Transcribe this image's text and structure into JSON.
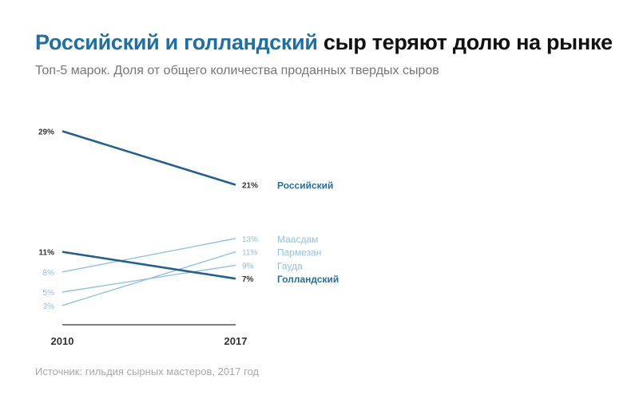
{
  "title": {
    "highlight": "Российский и голландский",
    "rest": " сыр теряют долю на рынке"
  },
  "subtitle": "Топ-5 марок. Доля от общего количества проданных твердых сыров",
  "source": "Источник: гильдия сырных мастеров, 2017 год",
  "colors": {
    "dark": "#22618f",
    "light": "#93c2de",
    "label_dark": "#2a6f9e",
    "title_accent": "#1f6fa6"
  },
  "chart_data": {
    "type": "line",
    "x": [
      "2010",
      "2017"
    ],
    "ylim": [
      0,
      30
    ],
    "unit": "%",
    "series": [
      {
        "name": "Российский",
        "values": [
          29,
          21
        ],
        "emphasis": true
      },
      {
        "name": "Маасдам",
        "values": [
          8,
          13
        ],
        "emphasis": false
      },
      {
        "name": "Пармезан",
        "values": [
          3,
          11
        ],
        "emphasis": false
      },
      {
        "name": "Гауда",
        "values": [
          5,
          9
        ],
        "emphasis": false
      },
      {
        "name": "Голландский",
        "values": [
          11,
          7
        ],
        "emphasis": true
      }
    ]
  }
}
